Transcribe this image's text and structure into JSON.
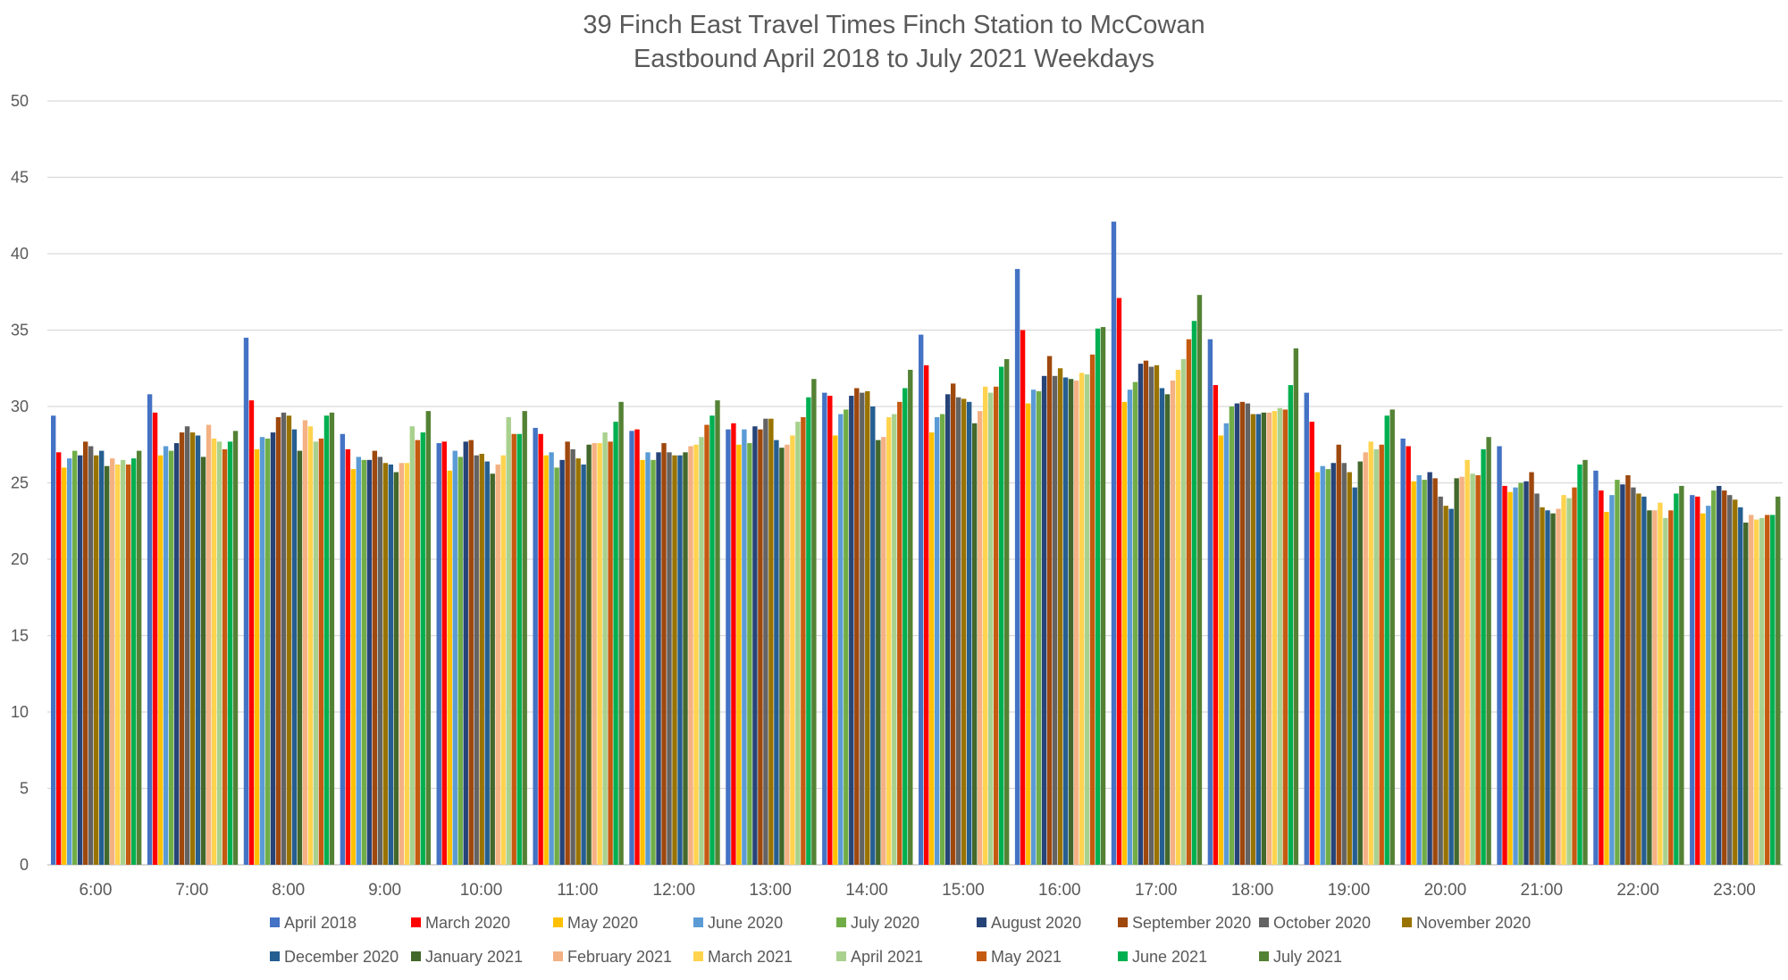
{
  "chart_data": {
    "type": "bar",
    "title_lines": [
      "39 Finch East Travel Times Finch Station to McCowan",
      "Eastbound April 2018 to July 2021 Weekdays"
    ],
    "xlabel": "",
    "ylabel": "",
    "ylim": [
      0,
      50
    ],
    "yticks": [
      0,
      5,
      10,
      15,
      20,
      25,
      30,
      35,
      40,
      45,
      50
    ],
    "grid": true,
    "legend_position": "bottom",
    "categories": [
      "6:00",
      "7:00",
      "8:00",
      "9:00",
      "10:00",
      "11:00",
      "12:00",
      "13:00",
      "14:00",
      "15:00",
      "16:00",
      "17:00",
      "18:00",
      "19:00",
      "20:00",
      "21:00",
      "22:00",
      "23:00"
    ],
    "series": [
      {
        "name": "April 2018",
        "color": "#4472C4",
        "values": [
          29.4,
          30.8,
          34.5,
          28.2,
          27.6,
          28.6,
          28.4,
          28.5,
          30.9,
          34.7,
          39.0,
          42.1,
          34.4,
          30.9,
          27.9,
          27.4,
          25.8,
          24.2
        ]
      },
      {
        "name": "March 2020",
        "color": "#FF0000",
        "values": [
          27.0,
          29.6,
          30.4,
          27.2,
          27.7,
          28.2,
          28.5,
          28.9,
          30.7,
          32.7,
          35.0,
          37.1,
          31.4,
          29.0,
          27.4,
          24.8,
          24.5,
          24.1
        ]
      },
      {
        "name": "May 2020",
        "color": "#FFC000",
        "values": [
          26.0,
          26.8,
          27.2,
          25.9,
          25.8,
          26.8,
          26.5,
          27.5,
          28.1,
          28.3,
          30.2,
          30.3,
          28.1,
          25.7,
          25.1,
          24.4,
          23.1,
          23.0
        ]
      },
      {
        "name": "June 2020",
        "color": "#5B9BD5",
        "values": [
          26.6,
          27.4,
          28.0,
          26.7,
          27.1,
          27.0,
          27.0,
          28.5,
          29.5,
          29.3,
          31.1,
          31.1,
          28.9,
          26.1,
          25.5,
          24.7,
          24.2,
          23.5
        ]
      },
      {
        "name": "July 2020",
        "color": "#70AD47",
        "values": [
          27.1,
          27.1,
          27.9,
          26.5,
          26.7,
          26.0,
          26.5,
          27.6,
          29.8,
          29.5,
          31.0,
          31.6,
          30.0,
          25.9,
          25.2,
          25.0,
          25.2,
          24.5
        ]
      },
      {
        "name": "August 2020",
        "color": "#264478",
        "values": [
          26.8,
          27.6,
          28.3,
          26.5,
          27.7,
          26.5,
          27.0,
          28.7,
          30.7,
          30.8,
          32.0,
          32.8,
          30.2,
          26.3,
          25.7,
          25.1,
          24.9,
          24.8
        ]
      },
      {
        "name": "September 2020",
        "color": "#9E480E",
        "values": [
          27.7,
          28.3,
          29.3,
          27.1,
          27.8,
          27.7,
          27.6,
          28.5,
          31.2,
          31.5,
          33.3,
          33.0,
          30.3,
          27.5,
          25.3,
          25.7,
          25.5,
          24.5
        ]
      },
      {
        "name": "October 2020",
        "color": "#636363",
        "values": [
          27.4,
          28.7,
          29.6,
          26.7,
          26.8,
          27.2,
          27.0,
          29.2,
          30.9,
          30.6,
          32.0,
          32.6,
          30.2,
          26.3,
          24.1,
          24.3,
          24.7,
          24.2
        ]
      },
      {
        "name": "November 2020",
        "color": "#997300",
        "values": [
          26.8,
          28.3,
          29.4,
          26.3,
          26.9,
          26.6,
          26.8,
          29.2,
          31.0,
          30.5,
          32.5,
          32.7,
          29.5,
          25.7,
          23.5,
          23.4,
          24.3,
          23.9
        ]
      },
      {
        "name": "December 2020",
        "color": "#255E91",
        "values": [
          27.1,
          28.1,
          28.5,
          26.2,
          26.4,
          26.2,
          26.8,
          27.8,
          30.0,
          30.3,
          31.9,
          31.2,
          29.5,
          24.7,
          23.3,
          23.2,
          24.1,
          23.4
        ]
      },
      {
        "name": "January 2021",
        "color": "#43682B",
        "values": [
          26.1,
          26.7,
          27.1,
          25.7,
          25.6,
          27.5,
          27.0,
          27.3,
          27.8,
          28.9,
          31.8,
          30.8,
          29.6,
          26.4,
          25.3,
          23.0,
          23.2,
          22.4
        ]
      },
      {
        "name": "February 2021",
        "color": "#F4B183",
        "values": [
          26.6,
          28.8,
          29.1,
          26.3,
          26.2,
          27.6,
          27.4,
          27.5,
          28.0,
          29.7,
          31.7,
          31.7,
          29.6,
          27.0,
          25.4,
          23.3,
          23.2,
          22.9
        ]
      },
      {
        "name": "March 2021",
        "color": "#FFD34E",
        "values": [
          26.2,
          27.9,
          28.7,
          26.3,
          26.8,
          27.6,
          27.5,
          28.1,
          29.3,
          31.3,
          32.2,
          32.4,
          29.7,
          27.7,
          26.5,
          24.2,
          23.7,
          22.6
        ]
      },
      {
        "name": "April 2021",
        "color": "#A9D18E",
        "values": [
          26.5,
          27.7,
          27.7,
          28.7,
          29.3,
          28.3,
          28.0,
          29.0,
          29.5,
          30.9,
          32.1,
          33.1,
          29.9,
          27.2,
          25.6,
          24.0,
          22.7,
          22.7
        ]
      },
      {
        "name": "May 2021",
        "color": "#C55A11",
        "values": [
          26.2,
          27.2,
          27.9,
          27.8,
          28.2,
          27.7,
          28.8,
          29.3,
          30.3,
          31.3,
          33.4,
          34.4,
          29.8,
          27.5,
          25.5,
          24.7,
          23.2,
          22.9
        ]
      },
      {
        "name": "June 2021",
        "color": "#00B050",
        "values": [
          26.6,
          27.7,
          29.4,
          28.3,
          28.2,
          29.0,
          29.4,
          30.6,
          31.2,
          32.6,
          35.1,
          35.6,
          31.4,
          29.4,
          27.2,
          26.2,
          24.3,
          22.9
        ]
      },
      {
        "name": "July 2021",
        "color": "#548235",
        "values": [
          27.1,
          28.4,
          29.6,
          29.7,
          29.7,
          30.3,
          30.4,
          31.8,
          32.4,
          33.1,
          35.2,
          37.3,
          33.8,
          29.8,
          28.0,
          26.5,
          24.8,
          24.1
        ]
      }
    ]
  }
}
